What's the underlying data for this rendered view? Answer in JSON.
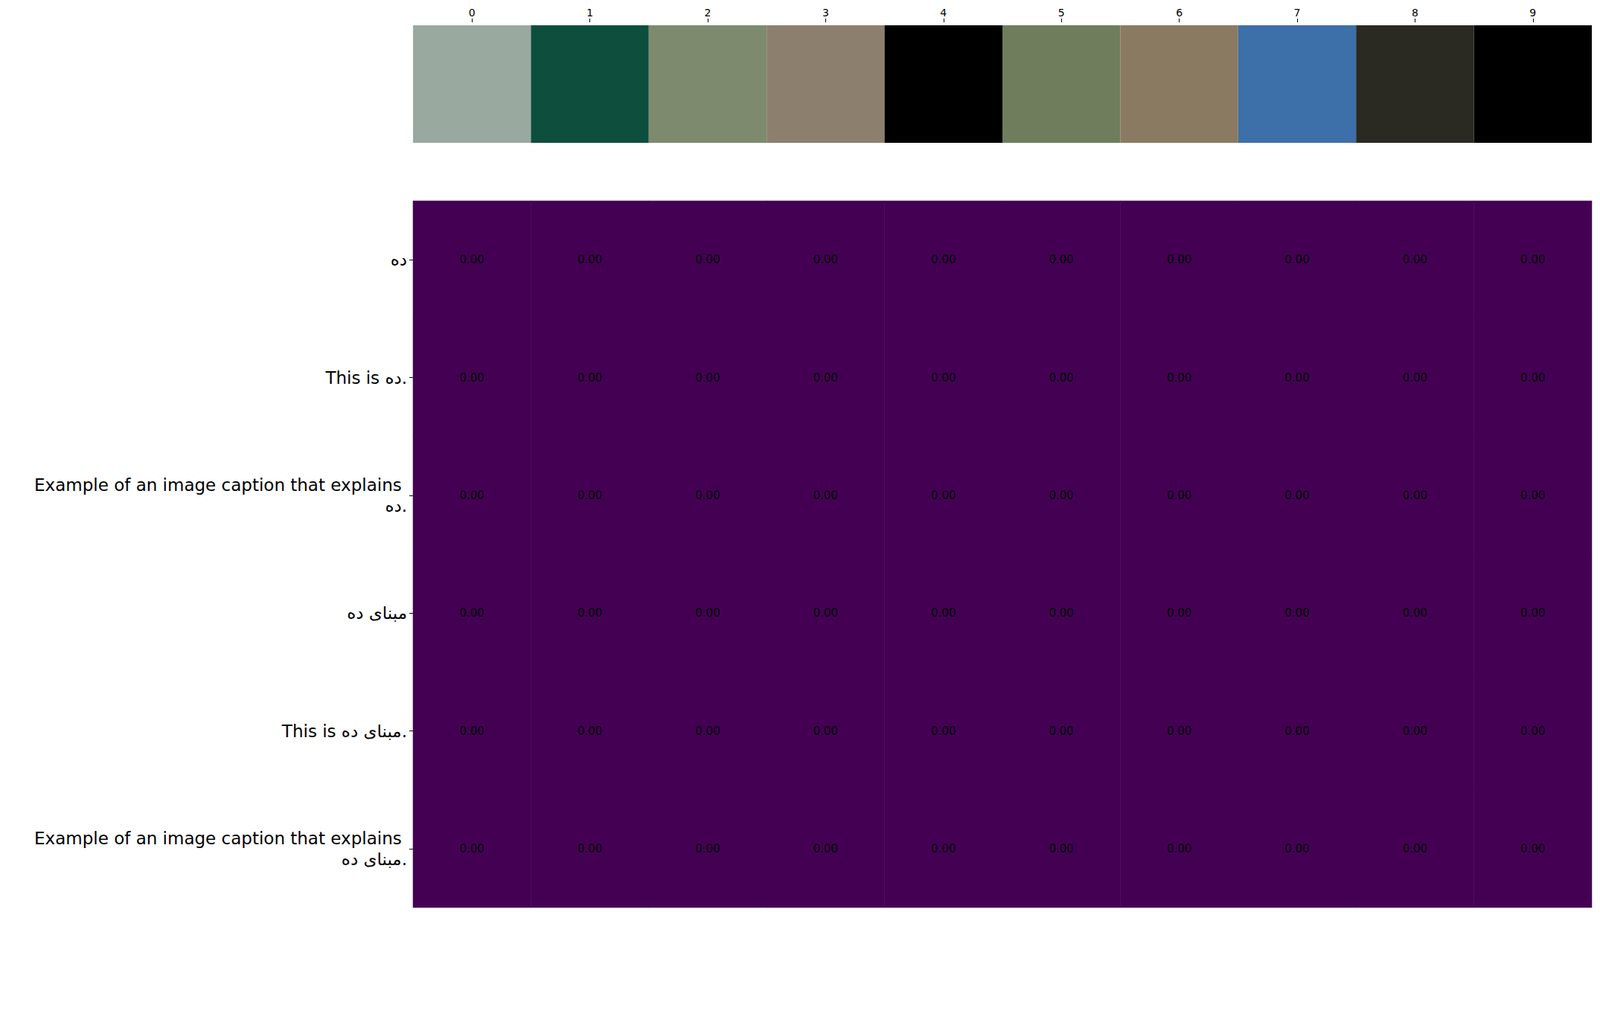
{
  "chart_data": {
    "type": "heatmap",
    "categories": [
      0,
      1,
      2,
      3,
      4,
      5,
      6,
      7,
      8,
      9
    ],
    "rows": [
      "ده",
      "This is ده.",
      "Example of an image caption that explains ده.",
      "مبنای ده",
      "This is مبنای ده.",
      "Example of an image caption that explains مبنای ده."
    ],
    "values": [
      [
        0,
        0,
        0,
        0,
        0,
        0,
        0,
        0,
        0,
        0
      ],
      [
        0,
        0,
        0,
        0,
        0,
        0,
        0,
        0,
        0,
        0
      ],
      [
        0,
        0,
        0,
        0,
        0,
        0,
        0,
        0,
        0,
        0
      ],
      [
        0,
        0,
        0,
        0,
        0,
        0,
        0,
        0,
        0,
        0
      ],
      [
        0,
        0,
        0,
        0,
        0,
        0,
        0,
        0,
        0,
        0
      ],
      [
        0,
        0,
        0,
        0,
        0,
        0,
        0,
        0,
        0,
        0
      ]
    ],
    "value_labels": [
      [
        "0.00",
        "0.00",
        "0.00",
        "0.00",
        "0.00",
        "0.00",
        "0.00",
        "0.00",
        "0.00",
        "0.00"
      ],
      [
        "0.00",
        "0.00",
        "0.00",
        "0.00",
        "0.00",
        "0.00",
        "0.00",
        "0.00",
        "0.00",
        "0.00"
      ],
      [
        "0.00",
        "0.00",
        "0.00",
        "0.00",
        "0.00",
        "0.00",
        "0.00",
        "0.00",
        "0.00",
        "0.00"
      ],
      [
        "0.00",
        "0.00",
        "0.00",
        "0.00",
        "0.00",
        "0.00",
        "0.00",
        "0.00",
        "0.00",
        "0.00"
      ],
      [
        "0.00",
        "0.00",
        "0.00",
        "0.00",
        "0.00",
        "0.00",
        "0.00",
        "0.00",
        "0.00",
        "0.00"
      ],
      [
        "0.00",
        "0.00",
        "0.00",
        "0.00",
        "0.00",
        "0.00",
        "0.00",
        "0.00",
        "0.00",
        "0.00"
      ]
    ],
    "color": "#440154",
    "data_labels": true
  }
}
